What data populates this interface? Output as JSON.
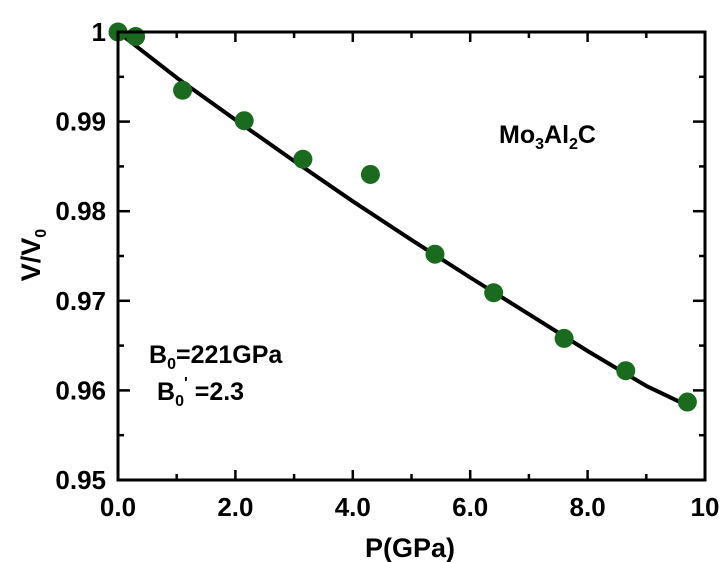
{
  "chart_data": {
    "type": "scatter",
    "xlabel": "P(GPa)",
    "ylabel": {
      "base": "V/V",
      "sub": "0"
    },
    "xlim": [
      0,
      10
    ],
    "ylim": [
      0.95,
      1.0
    ],
    "x_ticks": [
      {
        "value": 0,
        "label": "0.0"
      },
      {
        "value": 2,
        "label": "2.0"
      },
      {
        "value": 4,
        "label": "4.0"
      },
      {
        "value": 6,
        "label": "6.0"
      },
      {
        "value": 8,
        "label": "8.0"
      },
      {
        "value": 10,
        "label": "10"
      }
    ],
    "y_ticks": [
      {
        "value": 0.95,
        "label": "0.95"
      },
      {
        "value": 0.96,
        "label": "0.96"
      },
      {
        "value": 0.97,
        "label": "0.97"
      },
      {
        "value": 0.98,
        "label": "0.98"
      },
      {
        "value": 0.99,
        "label": "0.99"
      },
      {
        "value": 1.0,
        "label": "1"
      }
    ],
    "series": [
      {
        "kind": "points",
        "color": "#1a6b1f",
        "x": [
          0.0,
          0.3,
          1.1,
          2.15,
          3.15,
          4.3,
          5.4,
          6.4,
          7.6,
          8.65,
          9.7
        ],
        "y": [
          1.0,
          0.9995,
          0.9935,
          0.9901,
          0.9858,
          0.9841,
          0.9752,
          0.9709,
          0.9658,
          0.9622,
          0.9587
        ]
      },
      {
        "kind": "line",
        "color": "#000000",
        "x": [
          0,
          1,
          2,
          3,
          4,
          5,
          6,
          7,
          8,
          9,
          9.7
        ],
        "y": [
          1.0,
          0.9949,
          0.9902,
          0.9856,
          0.9811,
          0.9768,
          0.9726,
          0.9685,
          0.9644,
          0.9605,
          0.9583
        ]
      }
    ],
    "annotations": {
      "compound": {
        "parts": [
          "Mo",
          "3",
          "Al",
          "2",
          "C"
        ]
      },
      "b0": {
        "base": "B",
        "sub": "0",
        "rest": "=221GPa"
      },
      "b0prime": {
        "base": "B",
        "sub": "0",
        "sup": "'",
        "rest": " =2.3"
      }
    }
  }
}
